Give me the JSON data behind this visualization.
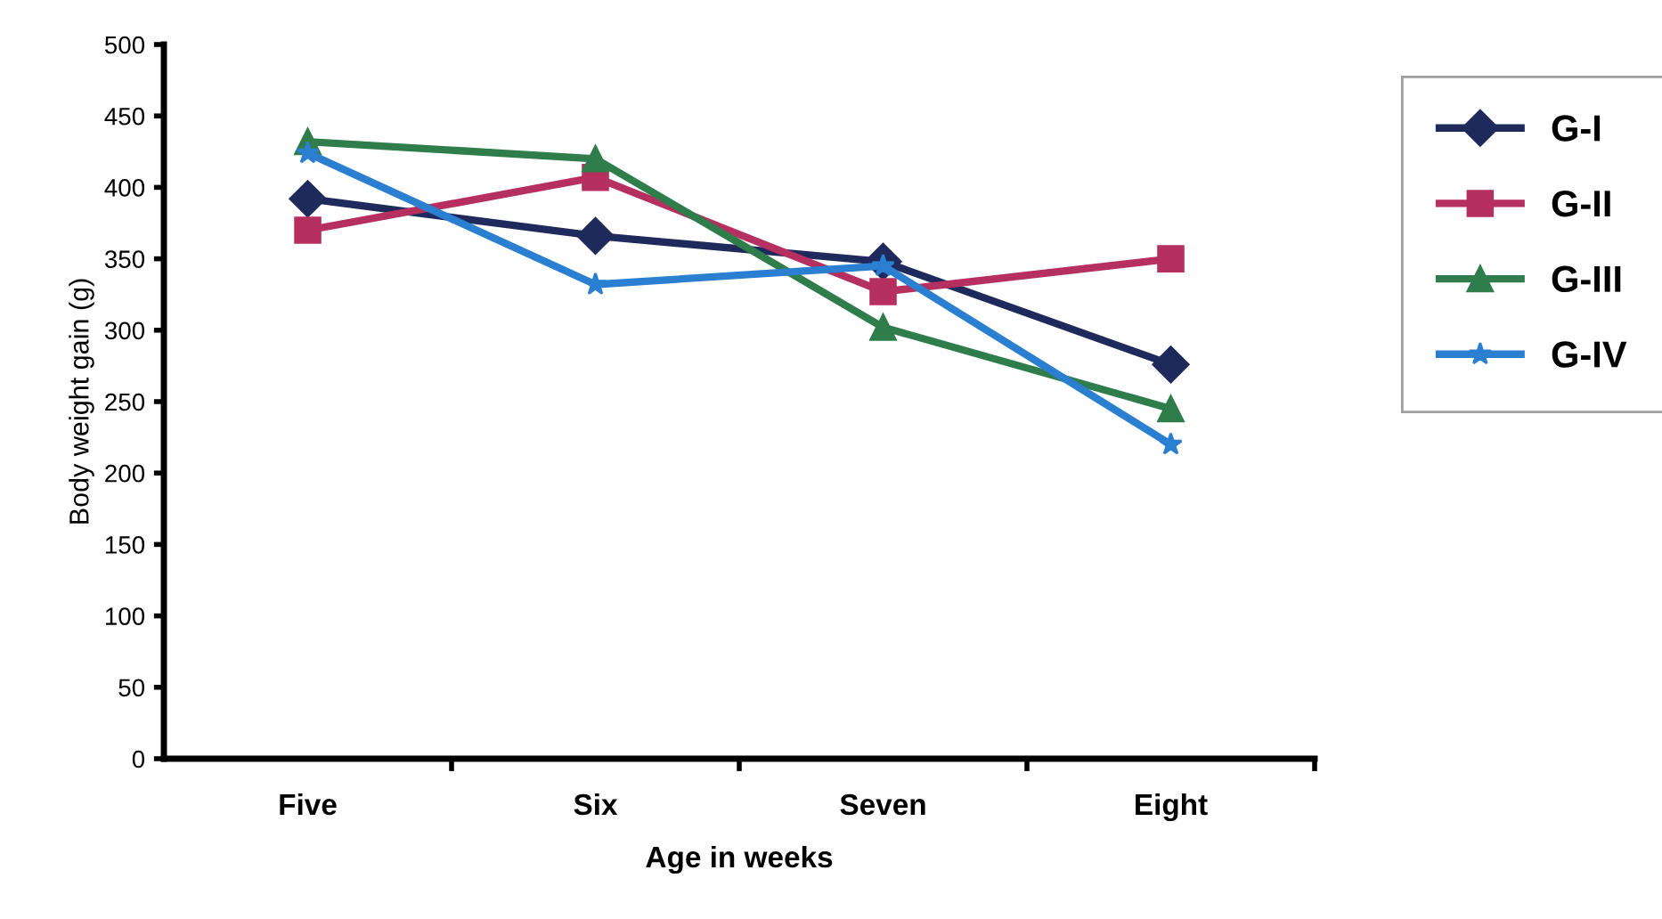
{
  "chart_data": {
    "type": "line",
    "xlabel": "Age in weeks",
    "ylabel": "Body weight gain (g)",
    "categories": [
      "Five",
      "Six",
      "Seven",
      "Eight"
    ],
    "series": [
      {
        "name": "G-I",
        "color": "#1f2a5c",
        "marker": "diamond",
        "values": [
          392,
          366,
          348,
          276
        ]
      },
      {
        "name": "G-II",
        "color": "#b5305f",
        "marker": "square",
        "values": [
          370,
          407,
          327,
          350
        ]
      },
      {
        "name": "G-III",
        "color": "#2e7d4a",
        "marker": "triangle",
        "values": [
          432,
          420,
          302,
          245
        ]
      },
      {
        "name": "G-IV",
        "color": "#2a7fd0",
        "marker": "star",
        "values": [
          424,
          332,
          345,
          220
        ]
      }
    ],
    "ylim": [
      0,
      500
    ],
    "yticks": [
      0,
      50,
      100,
      150,
      200,
      250,
      300,
      350,
      400,
      450,
      500
    ],
    "grid": false,
    "legend": "right",
    "line_style": "solid"
  }
}
